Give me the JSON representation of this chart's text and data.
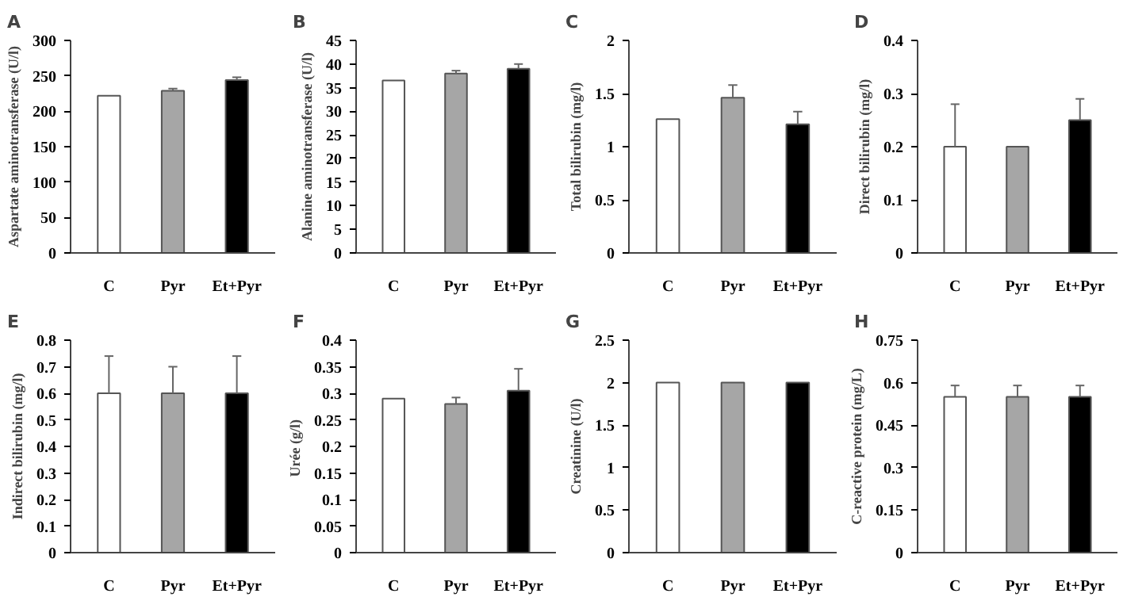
{
  "chart_data": [
    {
      "type": "bar",
      "title": "A",
      "ylabel": "Aspartate aminotransferase (U/l)",
      "categories": [
        "C",
        "Pyr",
        "Et+Pyr"
      ],
      "values": [
        222,
        229,
        244
      ],
      "colors": [
        "#ffffff",
        "#a6a6a6",
        "#000000"
      ],
      "errors": [
        null,
        [
          229,
          232
        ],
        [
          244,
          248
        ]
      ],
      "ylim": [
        0,
        300
      ],
      "yticks": [
        0,
        50,
        100,
        150,
        200,
        250,
        300
      ],
      "grid": false
    },
    {
      "type": "bar",
      "title": "B",
      "ylabel": "Alanine aminotransferase (U/l)",
      "categories": [
        "C",
        "Pyr",
        "Et+Pyr"
      ],
      "values": [
        36.5,
        38,
        39
      ],
      "colors": [
        "#ffffff",
        "#a6a6a6",
        "#000000"
      ],
      "errors": [
        null,
        [
          38,
          38.6
        ],
        [
          39,
          40
        ]
      ],
      "ylim": [
        0,
        45
      ],
      "yticks": [
        0,
        5,
        10,
        15,
        20,
        25,
        30,
        35,
        40,
        45
      ],
      "grid": false
    },
    {
      "type": "bar",
      "title": "C",
      "ylabel": "Total bilirubin (mg/l)",
      "categories": [
        "C",
        "Pyr",
        "Et+Pyr"
      ],
      "values": [
        1.26,
        1.46,
        1.21
      ],
      "colors": [
        "#ffffff",
        "#a6a6a6",
        "#000000"
      ],
      "errors": [
        null,
        [
          1.46,
          1.58
        ],
        [
          1.21,
          1.33
        ]
      ],
      "ylim": [
        0,
        2
      ],
      "yticks": [
        0,
        0.5,
        1,
        1.5,
        2
      ],
      "grid": false
    },
    {
      "type": "bar",
      "title": "D",
      "ylabel": "Direct bilirubin (mg/l)",
      "categories": [
        "C",
        "Pyr",
        "Et+Pyr"
      ],
      "values": [
        0.2,
        0.2,
        0.25
      ],
      "colors": [
        "#ffffff",
        "#a6a6a6",
        "#000000"
      ],
      "errors": [
        [
          0.2,
          0.28
        ],
        null,
        [
          0.25,
          0.29
        ]
      ],
      "ylim": [
        0,
        0.4
      ],
      "yticks": [
        0,
        0.1,
        0.2,
        0.3,
        0.4
      ],
      "grid": false
    },
    {
      "type": "bar",
      "title": "E",
      "ylabel": "Indirect bilirubin (mg/l)",
      "categories": [
        "C",
        "Pyr",
        "Et+Pyr"
      ],
      "values": [
        0.6,
        0.6,
        0.6
      ],
      "colors": [
        "#ffffff",
        "#a6a6a6",
        "#000000"
      ],
      "errors": [
        [
          0.6,
          0.74
        ],
        [
          0.6,
          0.7
        ],
        [
          0.6,
          0.74
        ]
      ],
      "ylim": [
        0,
        0.8
      ],
      "yticks": [
        0,
        0.1,
        0.2,
        0.3,
        0.4,
        0.5,
        0.6,
        0.7,
        0.8
      ],
      "grid": false
    },
    {
      "type": "bar",
      "title": "F",
      "ylabel": "Urée  (g/l)",
      "categories": [
        "C",
        "Pyr",
        "Et+Pyr"
      ],
      "values": [
        0.29,
        0.28,
        0.305
      ],
      "colors": [
        "#ffffff",
        "#a6a6a6",
        "#000000"
      ],
      "errors": [
        null,
        [
          0.28,
          0.292
        ],
        [
          0.305,
          0.346
        ]
      ],
      "ylim": [
        0,
        0.4
      ],
      "yticks": [
        0,
        0.05,
        0.1,
        0.15,
        0.2,
        0.25,
        0.3,
        0.35,
        0.4
      ],
      "grid": false
    },
    {
      "type": "bar",
      "title": "G",
      "ylabel": "Creatinine (U/l)",
      "categories": [
        "C",
        "Pyr",
        "Et+Pyr"
      ],
      "values": [
        2,
        2,
        2
      ],
      "colors": [
        "#ffffff",
        "#a6a6a6",
        "#000000"
      ],
      "ylim": [
        0,
        2.5
      ],
      "yticks": [
        0,
        0.5,
        1,
        1.5,
        2,
        2.5
      ],
      "grid": false
    },
    {
      "type": "bar",
      "title": "H",
      "ylabel": "C-reactive protein (mg/L)",
      "categories": [
        "C",
        "Pyr",
        "Et+Pyr"
      ],
      "values": [
        0.55,
        0.55,
        0.55
      ],
      "colors": [
        "#ffffff",
        "#a6a6a6",
        "#000000"
      ],
      "errors": [
        [
          0.55,
          0.59
        ],
        [
          0.55,
          0.59
        ],
        [
          0.55,
          0.59
        ]
      ],
      "ylim": [
        0,
        0.75
      ],
      "yticks": [
        0,
        0.15,
        0.3,
        0.45,
        0.6,
        0.75
      ],
      "grid": false
    }
  ]
}
